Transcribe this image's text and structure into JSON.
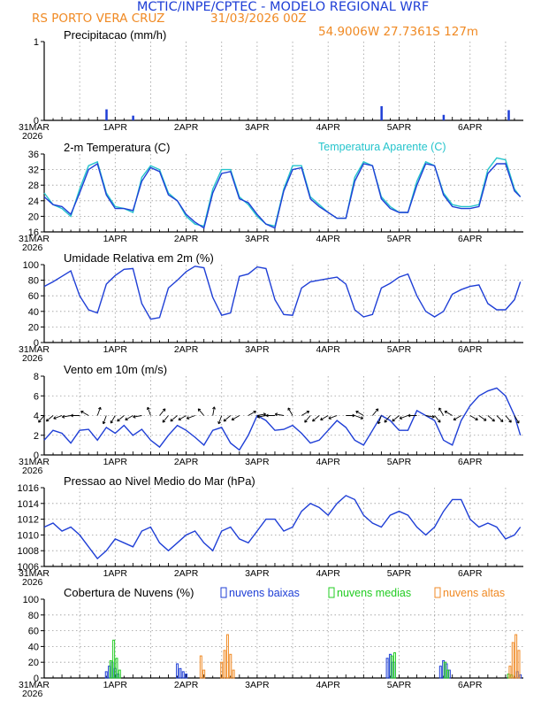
{
  "header": {
    "title": "MCTIC/INPE/CPTEC - MODELO REGIONAL WRF",
    "location": "RS PORTO VERA CRUZ",
    "run_date": "31/03/2026 00Z",
    "coordinates": "54.9006W 27.7361S 127m"
  },
  "colors": {
    "blue": "#1f3fd6",
    "cyan": "#25c4cc",
    "black": "#000000",
    "green": "#22cc22",
    "orange": "#f08a24",
    "grid": "#9a9a9a"
  },
  "time_axis": {
    "start_label": "31MAR",
    "year_label": "2026",
    "day_labels": [
      "1APR",
      "2APR",
      "3APR",
      "4APR",
      "5APR",
      "6APR"
    ]
  },
  "chart_data": [
    {
      "id": "precip",
      "type": "bar",
      "title": "Precipitacao (mm/h)",
      "ylim": [
        0,
        1
      ],
      "yticks": [
        0,
        1
      ],
      "x_unit": "hours since 31/03/2026 00Z",
      "series": [
        {
          "name": "precipitacao",
          "color": "blue",
          "x": [
            21,
            30,
            114,
            135,
            157
          ],
          "values": [
            0.14,
            0.06,
            0.18,
            0.07,
            0.13
          ]
        }
      ]
    },
    {
      "id": "temp",
      "type": "line",
      "title": "2-m Temperatura (C)",
      "legend": "Temperatura Aparente (C)",
      "ylim": [
        16,
        36
      ],
      "yticks": [
        16,
        20,
        24,
        28,
        32,
        36
      ],
      "x_unit": "hours since 31/03/2026 00Z",
      "series": [
        {
          "name": "Temperatura Aparente (C)",
          "color": "cyan",
          "x": [
            0,
            3,
            6,
            9,
            12,
            15,
            18,
            21,
            24,
            27,
            30,
            33,
            36,
            39,
            42,
            45,
            48,
            51,
            54,
            57,
            60,
            63,
            66,
            69,
            72,
            75,
            78,
            81,
            84,
            87,
            90,
            93,
            96,
            99,
            102,
            105,
            108,
            111,
            114,
            117,
            120,
            123,
            126,
            129,
            132,
            135,
            138,
            141,
            144,
            147,
            150,
            153,
            156,
            159,
            161
          ],
          "values": [
            26,
            23,
            22,
            20,
            27,
            33,
            34,
            26,
            22.5,
            22,
            21,
            30,
            33,
            32,
            26,
            24,
            20,
            18,
            17.5,
            27,
            32,
            32,
            25,
            23,
            20,
            18,
            17.5,
            27,
            33,
            33,
            25,
            23,
            21,
            19.5,
            19.5,
            30,
            34,
            33,
            25,
            22.5,
            21,
            21,
            29,
            34,
            33,
            26,
            23,
            22.5,
            22.5,
            23,
            32,
            35,
            34.5,
            27,
            25
          ]
        },
        {
          "name": "2-m Temperatura (C)",
          "color": "blue",
          "x": [
            0,
            3,
            6,
            9,
            12,
            15,
            18,
            21,
            24,
            27,
            30,
            33,
            36,
            39,
            42,
            45,
            48,
            51,
            54,
            57,
            60,
            63,
            66,
            69,
            72,
            75,
            78,
            81,
            84,
            87,
            90,
            93,
            96,
            99,
            102,
            105,
            108,
            111,
            114,
            117,
            120,
            123,
            126,
            129,
            132,
            135,
            138,
            141,
            144,
            147,
            150,
            153,
            156,
            159,
            161
          ],
          "values": [
            25,
            23,
            22.5,
            20.5,
            26,
            32,
            33.5,
            25.5,
            22,
            22,
            21.5,
            29,
            32.5,
            31.5,
            25.5,
            24,
            20.5,
            18.5,
            17,
            26,
            31,
            31.5,
            24.5,
            23.5,
            20.5,
            18,
            17,
            26.5,
            32,
            32.5,
            24.5,
            22.5,
            21,
            19.5,
            19.5,
            29,
            33.5,
            33,
            24.5,
            22,
            21,
            21,
            28,
            33.5,
            33,
            25.5,
            22.5,
            22,
            22,
            22.5,
            31,
            33.5,
            33.5,
            26.5,
            25
          ]
        }
      ]
    },
    {
      "id": "rh",
      "type": "line",
      "title": "Umidade Relativa em 2m (%)",
      "ylim": [
        0,
        100
      ],
      "yticks": [
        0,
        20,
        40,
        60,
        80,
        100
      ],
      "x_unit": "hours since 31/03/2026 00Z",
      "series": [
        {
          "name": "umidade",
          "color": "blue",
          "x": [
            0,
            3,
            6,
            9,
            12,
            15,
            18,
            21,
            24,
            27,
            30,
            33,
            36,
            39,
            42,
            45,
            48,
            51,
            54,
            57,
            60,
            63,
            66,
            69,
            72,
            75,
            78,
            81,
            84,
            87,
            90,
            93,
            96,
            99,
            102,
            105,
            108,
            111,
            114,
            117,
            120,
            123,
            126,
            129,
            132,
            135,
            138,
            141,
            144,
            147,
            150,
            153,
            156,
            159,
            161
          ],
          "values": [
            72,
            78,
            85,
            92,
            60,
            42,
            38,
            75,
            86,
            94,
            95,
            50,
            30,
            32,
            70,
            80,
            91,
            98,
            96,
            58,
            35,
            38,
            85,
            88,
            97,
            95,
            55,
            36,
            35,
            70,
            78,
            80,
            82,
            84,
            75,
            42,
            33,
            36,
            70,
            76,
            84,
            88,
            60,
            40,
            33,
            40,
            62,
            68,
            72,
            74,
            50,
            42,
            42,
            55,
            78
          ]
        }
      ]
    },
    {
      "id": "wind",
      "type": "line",
      "title": "Vento em 10m (m/s)",
      "ylim": [
        0,
        8
      ],
      "yticks": [
        0,
        2,
        4,
        6,
        8
      ],
      "barb_level": 4,
      "x_unit": "hours since 31/03/2026 00Z",
      "series": [
        {
          "name": "vento",
          "color": "blue",
          "x": [
            0,
            3,
            6,
            9,
            12,
            15,
            18,
            21,
            24,
            27,
            30,
            33,
            36,
            39,
            42,
            45,
            48,
            51,
            54,
            57,
            60,
            63,
            66,
            69,
            72,
            75,
            78,
            81,
            84,
            87,
            90,
            93,
            96,
            99,
            102,
            105,
            108,
            111,
            114,
            117,
            120,
            123,
            126,
            129,
            132,
            135,
            138,
            141,
            144,
            147,
            150,
            153,
            156,
            159,
            161
          ],
          "values": [
            1.5,
            2.5,
            2.2,
            1.2,
            2.5,
            2.6,
            1.5,
            2.8,
            2.2,
            3.0,
            2.0,
            2.6,
            1.5,
            0.8,
            2.0,
            3.0,
            2.5,
            1.8,
            1.0,
            2.5,
            2.8,
            1.2,
            0.5,
            2.0,
            4.0,
            3.5,
            2.5,
            2.6,
            3.0,
            2.2,
            1.2,
            1.5,
            2.5,
            3.5,
            2.8,
            1.5,
            1.0,
            2.5,
            4.0,
            3.5,
            2.5,
            2.5,
            4.5,
            4.0,
            3.5,
            1.5,
            1.0,
            3.5,
            5.0,
            6.0,
            6.5,
            6.8,
            6.0,
            4.0,
            2.0
          ]
        }
      ],
      "arrow_direction": {
        "x": [
          0,
          3,
          6,
          9,
          12,
          15,
          18,
          21,
          24,
          27,
          30,
          33,
          36,
          39,
          42,
          45,
          48,
          51,
          54,
          57,
          60,
          63,
          66,
          69,
          72,
          75,
          78,
          81,
          84,
          87,
          90,
          93,
          96,
          99,
          102,
          105,
          108,
          111,
          114,
          117,
          120,
          123,
          126,
          129,
          132,
          135,
          138,
          141,
          144,
          147,
          150,
          153,
          156,
          159
        ],
        "deg": [
          220,
          230,
          250,
          260,
          270,
          300,
          20,
          200,
          210,
          230,
          240,
          260,
          340,
          40,
          220,
          230,
          240,
          250,
          320,
          10,
          200,
          230,
          240,
          60,
          80,
          260,
          270,
          280,
          330,
          60,
          220,
          230,
          240,
          250,
          90,
          110,
          300,
          40,
          200,
          220,
          230,
          250,
          270,
          100,
          140,
          330,
          300,
          240,
          120,
          125,
          130,
          135,
          140,
          150
        ]
      }
    },
    {
      "id": "pressure",
      "type": "line",
      "title": "Pressao ao Nivel Medio do Mar (hPa)",
      "ylim": [
        1006,
        1016
      ],
      "yticks": [
        1006,
        1008,
        1010,
        1012,
        1014,
        1016
      ],
      "x_unit": "hours since 31/03/2026 00Z",
      "series": [
        {
          "name": "pressao",
          "color": "blue",
          "x": [
            0,
            3,
            6,
            9,
            12,
            15,
            18,
            21,
            24,
            27,
            30,
            33,
            36,
            39,
            42,
            45,
            48,
            51,
            54,
            57,
            60,
            63,
            66,
            69,
            72,
            75,
            78,
            81,
            84,
            87,
            90,
            93,
            96,
            99,
            102,
            105,
            108,
            111,
            114,
            117,
            120,
            123,
            126,
            129,
            132,
            135,
            138,
            141,
            144,
            147,
            150,
            153,
            156,
            159,
            161
          ],
          "values": [
            1011,
            1011.5,
            1010.5,
            1011,
            1010,
            1008.5,
            1007,
            1008,
            1009.5,
            1009,
            1008.5,
            1010.5,
            1011,
            1009,
            1008,
            1009,
            1010,
            1010.5,
            1009,
            1008,
            1010.5,
            1011,
            1009.5,
            1009,
            1010.5,
            1012,
            1012,
            1010.5,
            1011,
            1013,
            1014,
            1013.5,
            1012.5,
            1014,
            1015,
            1014.5,
            1012.5,
            1011.5,
            1011,
            1012.5,
            1013,
            1012.5,
            1011,
            1010,
            1011,
            1013,
            1014.5,
            1014.5,
            1012,
            1011,
            1011.5,
            1011,
            1009.5,
            1010,
            1011
          ]
        }
      ]
    },
    {
      "id": "clouds",
      "type": "bar",
      "title": "Cobertura de Nuvens (%)",
      "ylim": [
        0,
        100
      ],
      "yticks": [
        0,
        20,
        40,
        60,
        80,
        100
      ],
      "x_unit": "hours since 31/03/2026 00Z",
      "series": [
        {
          "name": "nuvens baixas",
          "color": "blue",
          "x": [
            21,
            22,
            23,
            24,
            25,
            45,
            46,
            47,
            48,
            116,
            117,
            118,
            134,
            135,
            136,
            137,
            160,
            161
          ],
          "values": [
            8,
            15,
            20,
            12,
            5,
            18,
            12,
            8,
            5,
            25,
            30,
            20,
            15,
            22,
            18,
            10,
            8,
            4
          ]
        },
        {
          "name": "nuvens medias",
          "color": "green",
          "x": [
            22.5,
            23.5,
            24.5,
            25.5,
            117.5,
            118.5,
            135.5,
            136.5,
            157,
            158
          ],
          "values": [
            22,
            48,
            25,
            10,
            28,
            32,
            20,
            10,
            5,
            4
          ]
        },
        {
          "name": "nuvens altas",
          "color": "orange",
          "x": [
            53,
            54,
            60,
            61,
            62,
            63,
            64,
            157.5,
            158.5,
            159.5,
            160.5
          ],
          "values": [
            28,
            10,
            20,
            35,
            55,
            30,
            10,
            15,
            45,
            55,
            35
          ]
        }
      ]
    }
  ]
}
